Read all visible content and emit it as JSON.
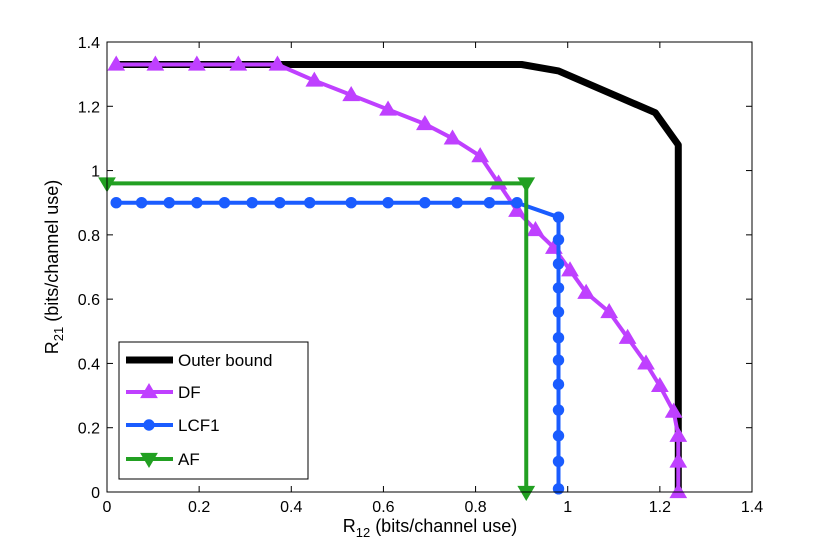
{
  "chart_data": {
    "type": "line",
    "xlabel": {
      "main": "R",
      "sub": "12",
      "rest": " (bits/channel use)"
    },
    "ylabel": {
      "main": "R",
      "sub": "21",
      "rest": " (bits/channel use)"
    },
    "xlim": [
      0,
      1.4
    ],
    "ylim": [
      0,
      1.4
    ],
    "xticks": [
      0,
      0.2,
      0.4,
      0.6,
      0.8,
      1,
      1.2,
      1.4
    ],
    "yticks": [
      0,
      0.2,
      0.4,
      0.6,
      0.8,
      1,
      1.2,
      1.4
    ],
    "xtick_labels": [
      "0",
      "0.2",
      "0.4",
      "0.6",
      "0.8",
      "1",
      "1.2",
      "1.4"
    ],
    "ytick_labels": [
      "0",
      "0.2",
      "0.4",
      "0.6",
      "0.8",
      "1",
      "1.2",
      "1.4"
    ],
    "grid": false,
    "legend_position": "bottom-left",
    "series": [
      {
        "name": "Outer bound",
        "color": "#000000",
        "marker": "none",
        "x": [
          0.02,
          0.9,
          0.98,
          1.19,
          1.24,
          1.24,
          1.24
        ],
        "y": [
          1.33,
          1.33,
          1.31,
          1.18,
          1.08,
          0.25,
          0
        ]
      },
      {
        "name": "DF",
        "color": "#bf40ff",
        "marker": "triangle-up",
        "x": [
          0.02,
          0.105,
          0.195,
          0.285,
          0.37,
          0.45,
          0.53,
          0.61,
          0.69,
          0.75,
          0.81,
          0.85,
          0.89,
          0.93,
          0.97,
          1.005,
          1.04,
          1.09,
          1.13,
          1.17,
          1.2,
          1.23,
          1.24,
          1.24,
          1.24
        ],
        "y": [
          1.33,
          1.33,
          1.33,
          1.33,
          1.33,
          1.28,
          1.235,
          1.19,
          1.145,
          1.1,
          1.045,
          0.96,
          0.875,
          0.815,
          0.76,
          0.69,
          0.62,
          0.56,
          0.48,
          0.4,
          0.33,
          0.25,
          0.175,
          0.095,
          0
        ]
      },
      {
        "name": "LCF1",
        "color": "#1a5cff",
        "marker": "circle",
        "x": [
          0.02,
          0.075,
          0.135,
          0.195,
          0.255,
          0.315,
          0.375,
          0.44,
          0.53,
          0.61,
          0.69,
          0.76,
          0.83,
          0.89,
          0.98,
          0.98,
          0.98,
          0.98,
          0.98,
          0.98,
          0.98,
          0.98,
          0.98,
          0.98
        ],
        "y": [
          0.9,
          0.9,
          0.9,
          0.9,
          0.9,
          0.9,
          0.9,
          0.9,
          0.9,
          0.9,
          0.9,
          0.9,
          0.9,
          0.9,
          0.855,
          0.785,
          0.71,
          0.635,
          0.56,
          0.48,
          0.41,
          0.335,
          0.255,
          0.175
        ],
        "x_extra": [
          0.98,
          0.98
        ],
        "y_extra": [
          0.095,
          0.01
        ]
      },
      {
        "name": "AF",
        "color": "#22a022",
        "marker": "triangle-down",
        "x": [
          0.0,
          0.91,
          0.91
        ],
        "y": [
          0.96,
          0.96,
          0.0
        ]
      }
    ]
  }
}
